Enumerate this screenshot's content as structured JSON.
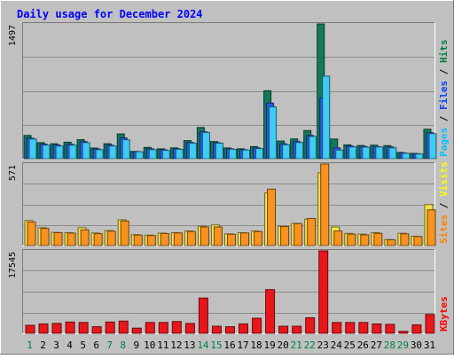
{
  "chart_data": {
    "type": "bar",
    "title": "Daily usage for December 2024",
    "categories": [
      "1",
      "2",
      "3",
      "4",
      "5",
      "6",
      "7",
      "8",
      "9",
      "10",
      "11",
      "12",
      "13",
      "14",
      "15",
      "16",
      "17",
      "18",
      "19",
      "20",
      "21",
      "22",
      "23",
      "24",
      "25",
      "26",
      "27",
      "28",
      "29",
      "30",
      "31"
    ],
    "weekend_days": [
      1,
      7,
      8,
      14,
      15,
      21,
      22,
      28,
      29
    ],
    "panels": [
      {
        "max_label": "1497",
        "ylim": [
          0,
          1497
        ],
        "right_label_parts": [
          {
            "text": "Pages",
            "color": "#00c0ff"
          },
          {
            "text": " / ",
            "color": "#000000"
          },
          {
            "text": "Files",
            "color": "#0040ff"
          },
          {
            "text": " / ",
            "color": "#000000"
          },
          {
            "text": "Hits",
            "color": "#008040"
          }
        ],
        "series": [
          {
            "name": "Hits",
            "color": "#127a5a",
            "values": [
              258,
              178,
              166,
              183,
              211,
              118,
              166,
              275,
              81,
              125,
              109,
              120,
              201,
              346,
              190,
              119,
              110,
              134,
              755,
              196,
              219,
              312,
              1497,
              218,
              153,
              146,
              150,
              145,
              69,
              59,
              327
            ]
          },
          {
            "name": "Files",
            "color": "#2a58e6",
            "values": [
              228,
              162,
              152,
              160,
              190,
              108,
              150,
              230,
              78,
              110,
              99,
              110,
              180,
              300,
              178,
              109,
              100,
              120,
              618,
              165,
              190,
              258,
              676,
              120,
              140,
              136,
              134,
              130,
              63,
              55,
              288
            ]
          },
          {
            "name": "Pages",
            "color": "#3ecbf4",
            "values": [
              218,
              150,
              140,
              150,
              178,
              100,
              140,
              210,
              76,
              100,
              92,
              104,
              172,
              292,
              172,
              104,
              96,
              112,
              575,
              155,
              180,
              247,
              917,
              95,
              130,
              128,
              130,
              120,
              60,
              52,
              278
            ]
          }
        ]
      },
      {
        "max_label": "571",
        "ylim": [
          0,
          571
        ],
        "right_label_parts": [
          {
            "text": "Sites",
            "color": "#ff8000"
          },
          {
            "text": " / ",
            "color": "#000000"
          },
          {
            "text": "Visits",
            "color": "#ffff00"
          }
        ],
        "series": [
          {
            "name": "Visits",
            "color": "#f6e34a",
            "values": [
              175,
              125,
              92,
              90,
              125,
              88,
              105,
              180,
              76,
              73,
              87,
              90,
              102,
              136,
              144,
              82,
              90,
              102,
              368,
              135,
              155,
              185,
              510,
              130,
              85,
              80,
              90,
              42,
              86,
              65,
              287
            ]
          },
          {
            "name": "Sites",
            "color": "#f7931e",
            "values": [
              165,
              120,
              90,
              87,
              110,
              83,
              100,
              172,
              73,
              70,
              84,
              88,
              98,
              130,
              130,
              79,
              88,
              98,
              395,
              133,
              153,
              190,
              571,
              102,
              80,
              75,
              85,
              40,
              82,
              63,
              250
            ]
          }
        ]
      },
      {
        "max_label": "17545",
        "ylim": [
          0,
          17545
        ],
        "right_label_parts": [
          {
            "text": "KBytes",
            "color": "#ff0000"
          }
        ],
        "series": [
          {
            "name": "KBytes",
            "color": "#e8161b",
            "values": [
              1700,
              2000,
              2100,
              2400,
              2300,
              1400,
              2400,
              2600,
              1100,
              2300,
              2300,
              2500,
              2100,
              7500,
              1500,
              1400,
              2000,
              3200,
              9300,
              1500,
              1500,
              3300,
              17545,
              2300,
              2300,
              2300,
              2000,
              1900,
              400,
              1800,
              4000
            ]
          }
        ]
      }
    ]
  }
}
